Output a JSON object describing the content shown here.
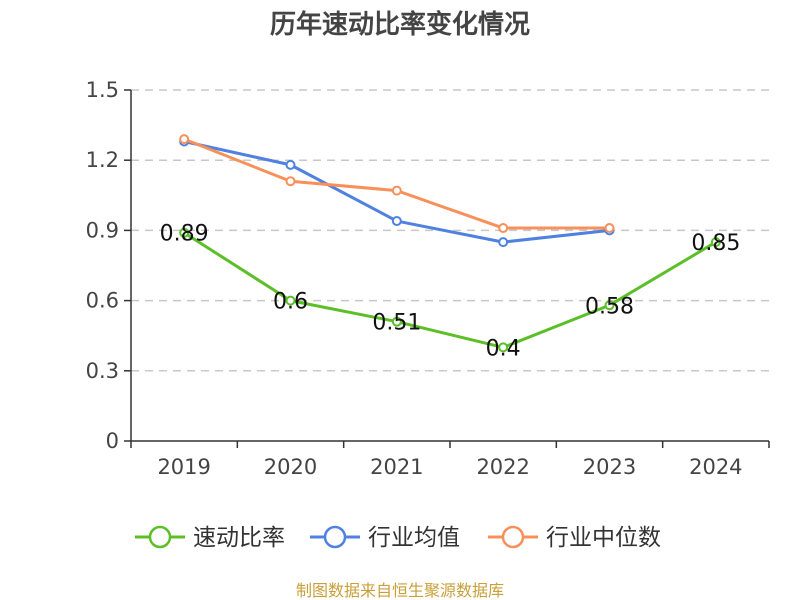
{
  "chart_data": {
    "type": "line",
    "title": "历年速动比率变化情况",
    "categories": [
      "2019",
      "2020",
      "2021",
      "2022",
      "2023",
      "2024"
    ],
    "ylim": [
      0,
      1.5
    ],
    "yticks": [
      "0",
      "0.3",
      "0.6",
      "0.9",
      "1.2",
      "1.5"
    ],
    "grid": true,
    "legend_position": "bottom",
    "series": [
      {
        "name": "速动比率",
        "color": "#5cbf28",
        "values": [
          0.89,
          0.6,
          0.51,
          0.4,
          0.58,
          0.85
        ],
        "labels": [
          "0.89",
          "0.6",
          "0.51",
          "0.4",
          "0.58",
          "0.85"
        ]
      },
      {
        "name": "行业均值",
        "color": "#4f81e0",
        "values": [
          1.28,
          1.18,
          0.94,
          0.85,
          0.9,
          null
        ]
      },
      {
        "name": "行业中位数",
        "color": "#f7905a",
        "values": [
          1.29,
          1.11,
          1.07,
          0.91,
          0.91,
          null
        ]
      }
    ]
  },
  "footer": {
    "source": "制图数据来自恒生聚源数据库"
  }
}
